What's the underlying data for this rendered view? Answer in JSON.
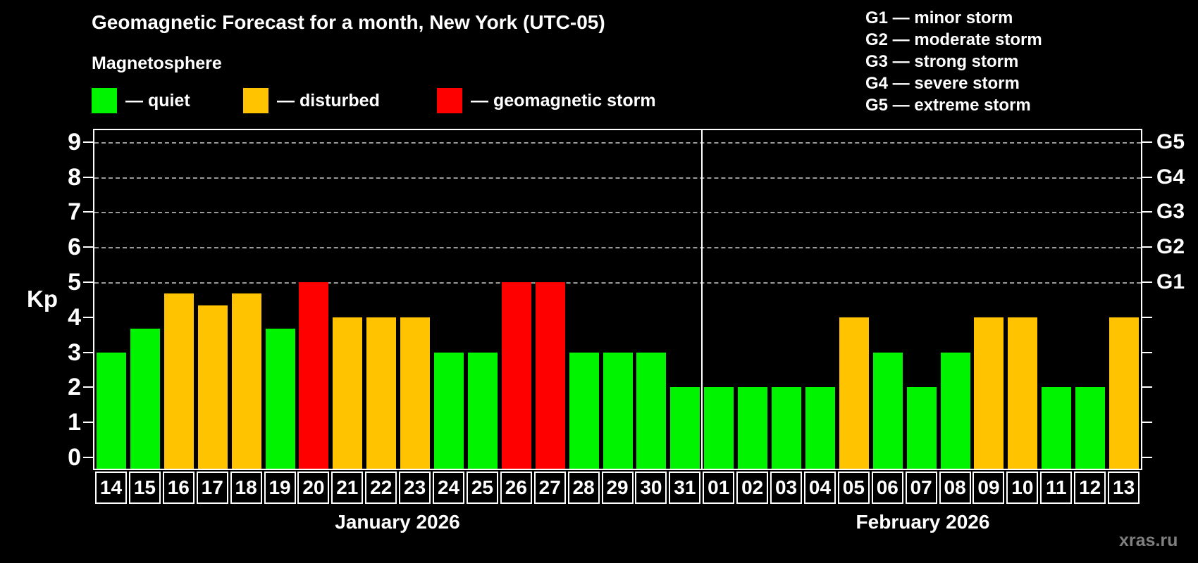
{
  "title": "Geomagnetic Forecast for a month, New York (UTC-05)",
  "subtitle": "Magnetosphere",
  "colors": {
    "quiet": "#00f400",
    "disturbed": "#ffc300",
    "storm": "#ff0000",
    "background": "#000000",
    "grid": "#9a9a9a",
    "axis": "#ffffff",
    "watermark": "#7f7f7f"
  },
  "legend": {
    "items": [
      {
        "key": "quiet",
        "label": "— quiet",
        "color": "#00f400"
      },
      {
        "key": "disturbed",
        "label": "— disturbed",
        "color": "#ffc300"
      },
      {
        "key": "storm",
        "label": "— geomagnetic storm",
        "color": "#ff0000"
      }
    ]
  },
  "storm_scale": [
    "G1 — minor storm",
    "G2 — moderate storm",
    "G3 — strong storm",
    "G4 — severe storm",
    "G5 — extreme storm"
  ],
  "watermark": "xras.ru",
  "chart_data": {
    "type": "bar",
    "ylabel": "Kp",
    "ylim": [
      0,
      9.6
    ],
    "yticks": [
      0,
      1,
      2,
      3,
      4,
      5,
      6,
      7,
      8,
      9
    ],
    "grid_levels": [
      5,
      6,
      7,
      8,
      9
    ],
    "grid": "dashed, only at storm levels G1–G5",
    "legend_position": "top-left and top-right",
    "right_axis": [
      {
        "kp": 5,
        "label": "G1"
      },
      {
        "kp": 6,
        "label": "G2"
      },
      {
        "kp": 7,
        "label": "G3"
      },
      {
        "kp": 8,
        "label": "G4"
      },
      {
        "kp": 9,
        "label": "G5"
      }
    ],
    "months": [
      {
        "label": "January 2026",
        "days": [
          {
            "day": "14",
            "kp": 3,
            "level": "quiet"
          },
          {
            "day": "15",
            "kp": 3.67,
            "level": "quiet"
          },
          {
            "day": "16",
            "kp": 4.67,
            "level": "disturbed"
          },
          {
            "day": "17",
            "kp": 4.33,
            "level": "disturbed"
          },
          {
            "day": "18",
            "kp": 4.67,
            "level": "disturbed"
          },
          {
            "day": "19",
            "kp": 3.67,
            "level": "quiet"
          },
          {
            "day": "20",
            "kp": 5,
            "level": "storm"
          },
          {
            "day": "21",
            "kp": 4,
            "level": "disturbed"
          },
          {
            "day": "22",
            "kp": 4,
            "level": "disturbed"
          },
          {
            "day": "23",
            "kp": 4,
            "level": "disturbed"
          },
          {
            "day": "24",
            "kp": 3,
            "level": "quiet"
          },
          {
            "day": "25",
            "kp": 3,
            "level": "quiet"
          },
          {
            "day": "26",
            "kp": 5,
            "level": "storm"
          },
          {
            "day": "27",
            "kp": 5,
            "level": "storm"
          },
          {
            "day": "28",
            "kp": 3,
            "level": "quiet"
          },
          {
            "day": "29",
            "kp": 3,
            "level": "quiet"
          },
          {
            "day": "30",
            "kp": 3,
            "level": "quiet"
          },
          {
            "day": "31",
            "kp": 2,
            "level": "quiet"
          }
        ]
      },
      {
        "label": "February 2026",
        "days": [
          {
            "day": "01",
            "kp": 2,
            "level": "quiet"
          },
          {
            "day": "02",
            "kp": 2,
            "level": "quiet"
          },
          {
            "day": "03",
            "kp": 2,
            "level": "quiet"
          },
          {
            "day": "04",
            "kp": 2,
            "level": "quiet"
          },
          {
            "day": "05",
            "kp": 4,
            "level": "disturbed"
          },
          {
            "day": "06",
            "kp": 3,
            "level": "quiet"
          },
          {
            "day": "07",
            "kp": 2,
            "level": "quiet"
          },
          {
            "day": "08",
            "kp": 3,
            "level": "quiet"
          },
          {
            "day": "09",
            "kp": 4,
            "level": "disturbed"
          },
          {
            "day": "10",
            "kp": 4,
            "level": "disturbed"
          },
          {
            "day": "11",
            "kp": 2,
            "level": "quiet"
          },
          {
            "day": "12",
            "kp": 2,
            "level": "quiet"
          },
          {
            "day": "13",
            "kp": 4,
            "level": "disturbed"
          }
        ]
      }
    ]
  }
}
